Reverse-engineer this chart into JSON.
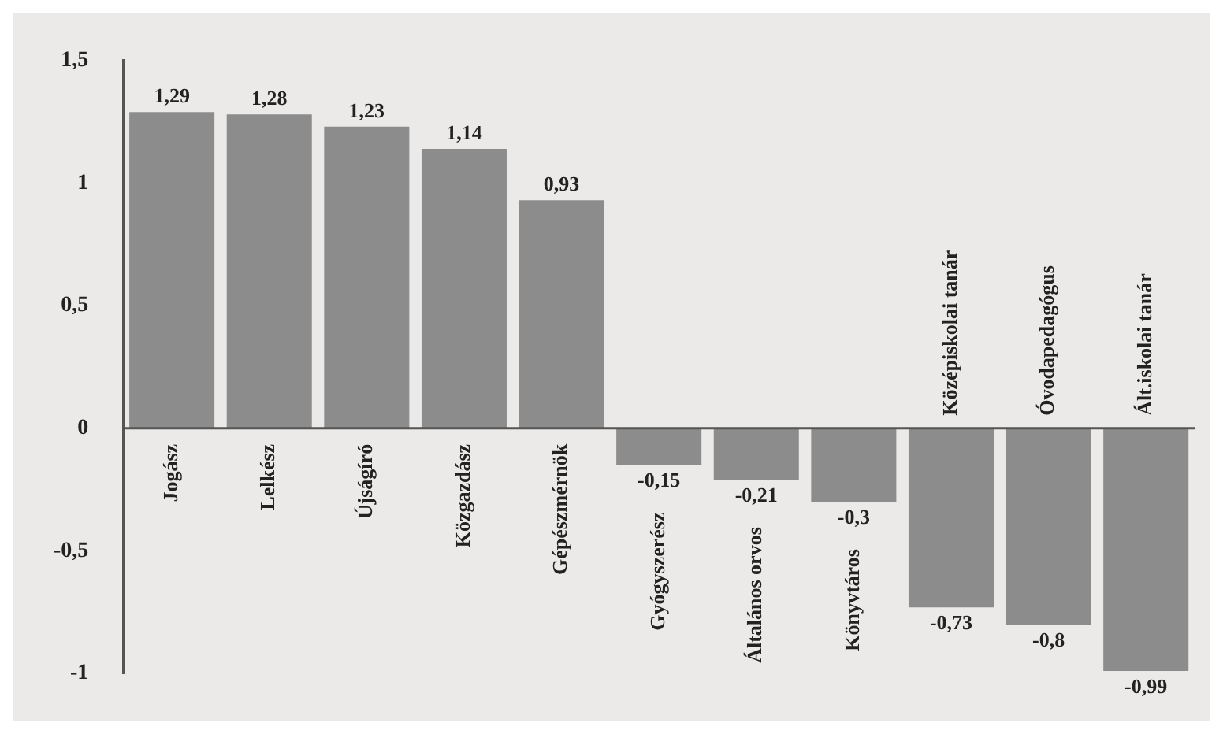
{
  "chart_data": {
    "type": "bar",
    "categories": [
      "Jogász",
      "Lelkész",
      "Újságíró",
      "Közgazdász",
      "Gépészmérnök",
      "Gyógyszerész",
      "Általános orvos",
      "Könyvtáros",
      "Középiskolai tanár",
      "Óvodapedagógus",
      "Ált.iskolai tanár"
    ],
    "values": [
      1.29,
      1.28,
      1.23,
      1.14,
      0.93,
      -0.15,
      -0.21,
      -0.3,
      -0.73,
      -0.8,
      -0.99
    ],
    "value_labels": [
      "1,29",
      "1,28",
      "1,23",
      "1,14",
      "0,93",
      "-0,15",
      "-0,21",
      "-0,3",
      "-0,73",
      "-0,8",
      "-0,99"
    ],
    "color": "#8c8c8c",
    "ylim": [
      -1,
      1.5
    ],
    "yticks": [
      {
        "value": -1,
        "label": "-1"
      },
      {
        "value": -0.5,
        "label": "-0,5"
      },
      0,
      {
        "value": 0.5,
        "label": "0,5"
      },
      1,
      {
        "value": 1.5,
        "label": "1,5"
      }
    ],
    "grid": false
  }
}
